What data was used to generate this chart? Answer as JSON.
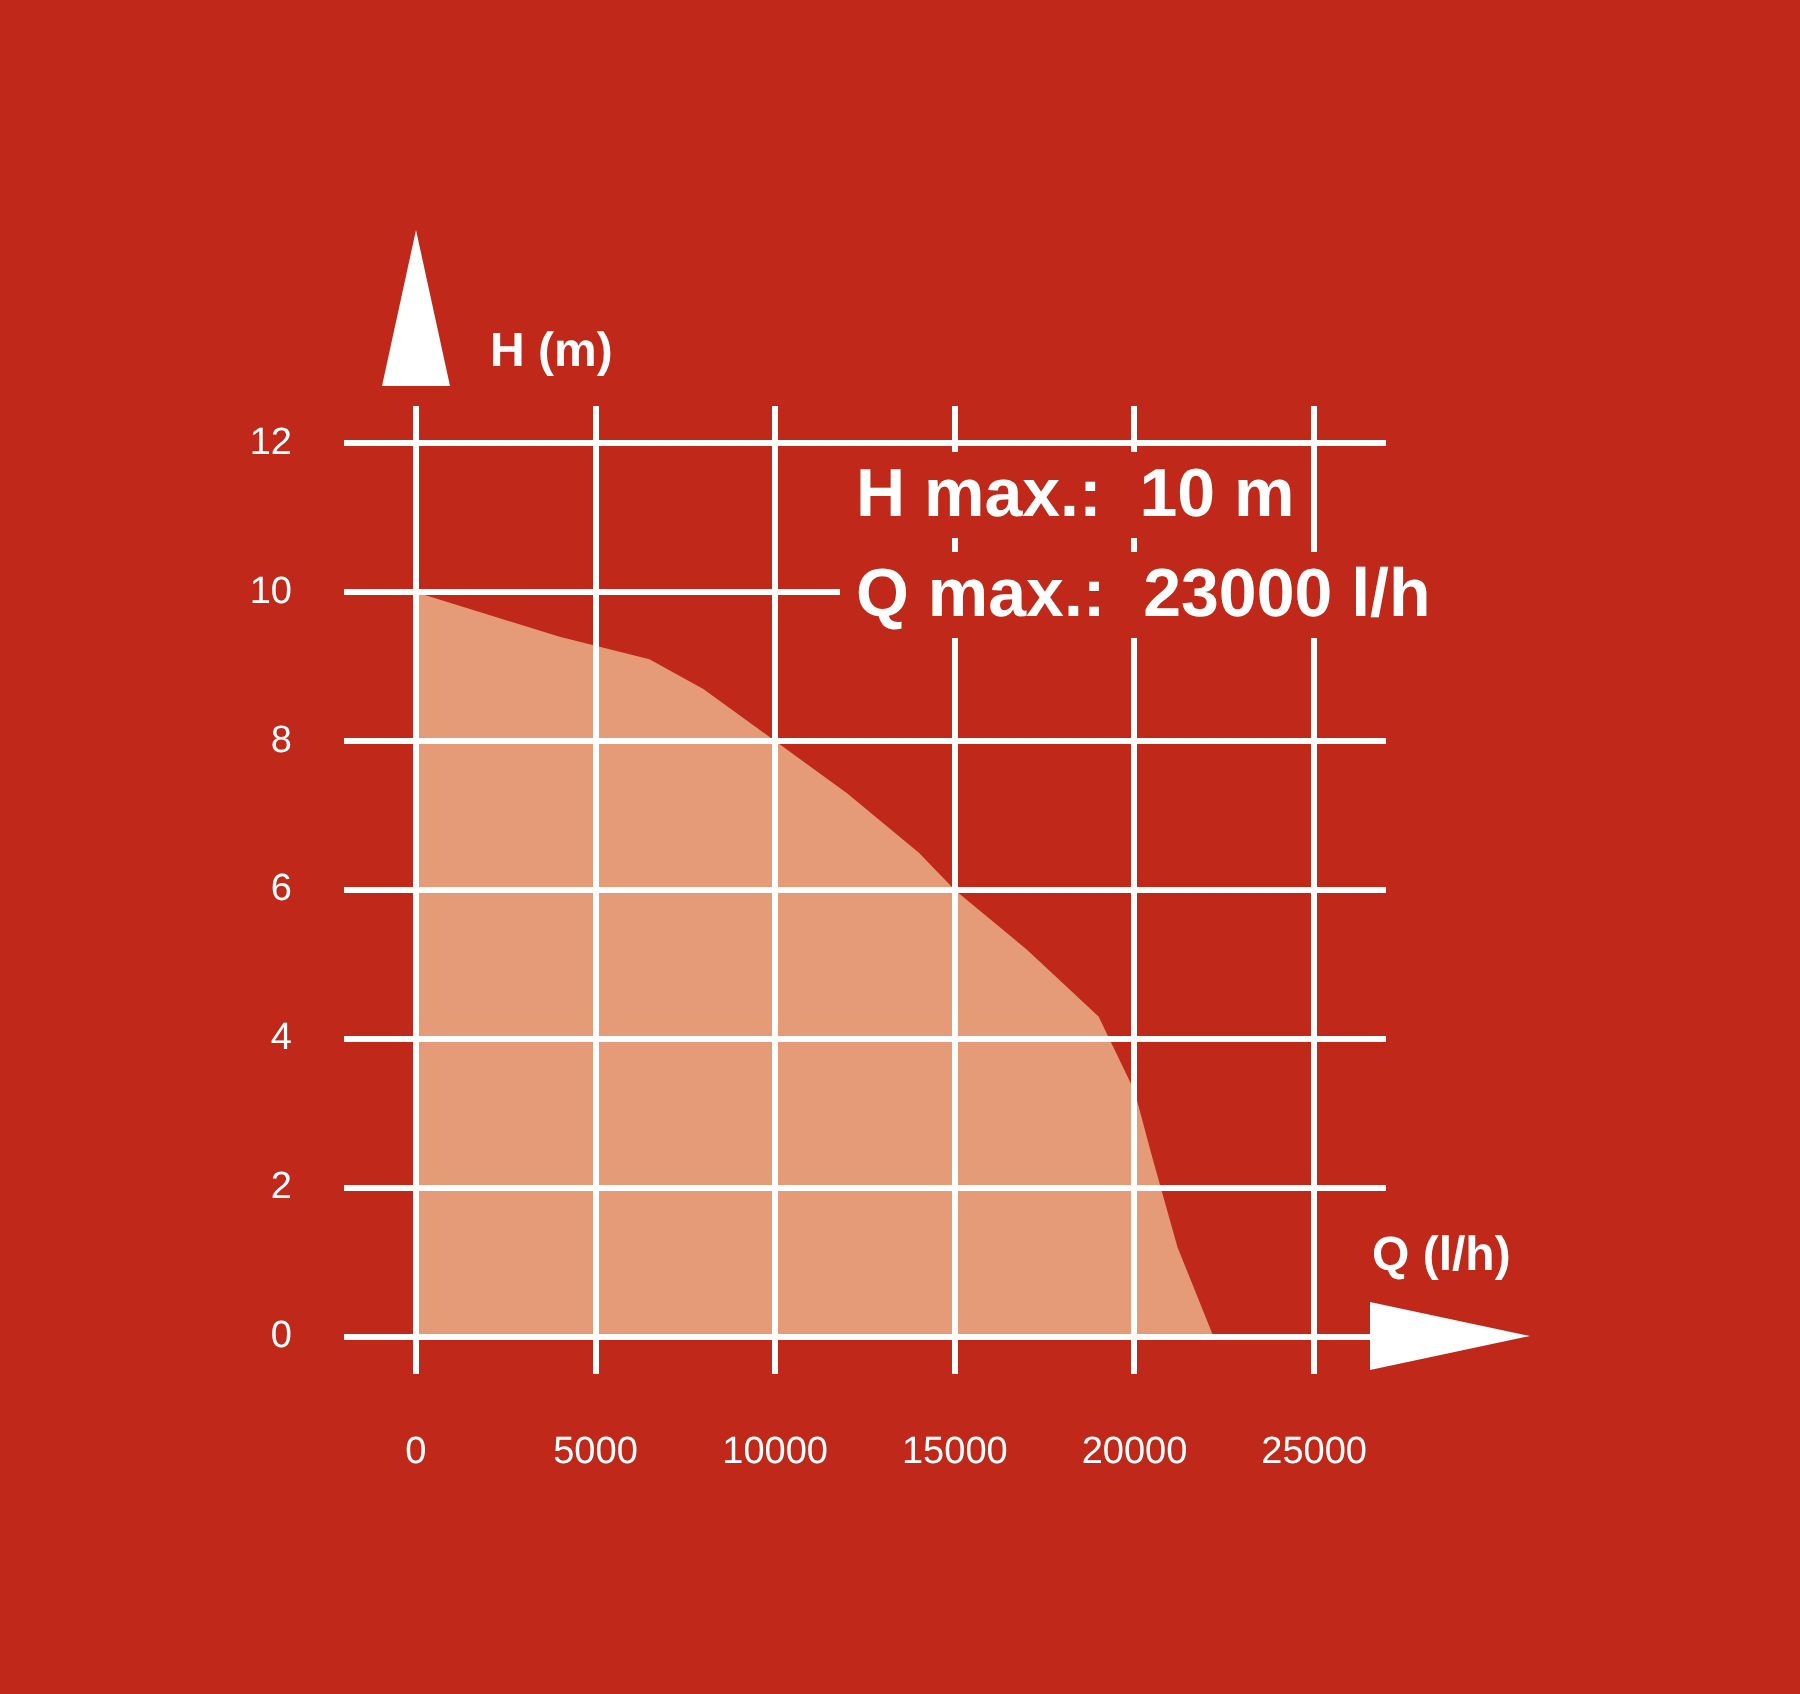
{
  "chart_data": {
    "type": "area",
    "xlabel": "Q (l/h)",
    "ylabel": "H (m)",
    "annotations": [
      "H max.:  10 m",
      "Q max.:  23000 l/h"
    ],
    "x": [
      0,
      2000,
      4000,
      6500,
      8000,
      10000,
      12000,
      14000,
      15000,
      17000,
      19000,
      20000,
      20500,
      21200,
      22200
    ],
    "series": [
      {
        "color": "#e59a78",
        "values": [
          10,
          9.7,
          9.4,
          9.1,
          8.7,
          8.0,
          7.3,
          6.5,
          6.0,
          5.2,
          4.3,
          3.3,
          2.4,
          1.2,
          0
        ]
      }
    ],
    "xlim": [
      -2000,
      27000
    ],
    "ylim": [
      -0.5,
      12.5
    ],
    "xticks": [
      0,
      5000,
      10000,
      15000,
      20000,
      25000
    ],
    "yticks": [
      0,
      2,
      4,
      6,
      8,
      10,
      12
    ],
    "grid": true,
    "legend": false
  }
}
